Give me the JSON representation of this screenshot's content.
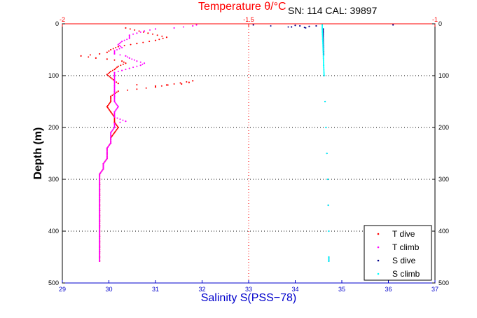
{
  "chart_data": {
    "type": "scatter",
    "title": "Temperature θ/°C",
    "annotation": "SN: 114  CAL: 39897",
    "xlabel": "Salinity S(PSS−78)",
    "ylabel": "Depth (m)",
    "xlim": [
      29,
      37
    ],
    "x_top_lim": [
      -2,
      -1
    ],
    "ylim": [
      0,
      500
    ],
    "y_reversed": true,
    "x_ticks": [
      "29",
      "30",
      "31",
      "32",
      "33",
      "34",
      "35",
      "36",
      "37"
    ],
    "x_top_ticks": [
      "-2",
      "-1.5",
      "-1"
    ],
    "y_ticks": [
      "0",
      "100",
      "200",
      "300",
      "400",
      "500"
    ],
    "grid": "dotted",
    "legend_position": "bottom-right",
    "colors": {
      "t_dive": "#ff0000",
      "t_climb": "#ff00ff",
      "s_dive": "#00008b",
      "s_climb": "#00ffff",
      "temperature_axis": "#ff0000",
      "salinity_axis": "#0000cc"
    },
    "series": [
      {
        "name": "T dive",
        "axis": "temperature",
        "points": [
          [
            -1.83,
            8
          ],
          [
            -1.77,
            18
          ],
          [
            -1.72,
            26
          ],
          [
            -1.75,
            32
          ],
          [
            -1.8,
            38
          ],
          [
            -1.85,
            44
          ],
          [
            -1.87,
            50
          ],
          [
            -1.88,
            55
          ],
          [
            -1.9,
            58
          ],
          [
            -1.95,
            62
          ],
          [
            -1.91,
            66
          ],
          [
            -1.88,
            68
          ],
          [
            -1.84,
            72
          ],
          [
            -1.83,
            76
          ],
          [
            -1.85,
            82
          ],
          [
            -1.86,
            88
          ],
          [
            -1.87,
            92
          ],
          [
            -1.88,
            98
          ],
          [
            -1.87,
            104
          ],
          [
            -1.86,
            110
          ],
          [
            -1.85,
            115
          ],
          [
            -1.75,
            120
          ],
          [
            -1.72,
            118
          ],
          [
            -1.68,
            116
          ],
          [
            -1.66,
            113
          ],
          [
            -1.65,
            110
          ],
          [
            -1.75,
            122
          ],
          [
            -1.85,
            130
          ],
          [
            -1.87,
            140
          ],
          [
            -1.87,
            150
          ],
          [
            -1.88,
            160
          ],
          [
            -1.87,
            170
          ],
          [
            -1.86,
            180
          ],
          [
            -1.86,
            190
          ],
          [
            -1.85,
            200
          ],
          [
            -1.86,
            210
          ],
          [
            -1.87,
            220
          ],
          [
            -1.87,
            230
          ],
          [
            -1.88,
            240
          ],
          [
            -1.88,
            250
          ],
          [
            -1.88,
            260
          ],
          [
            -1.89,
            270
          ],
          [
            -1.89,
            280
          ],
          [
            -1.9,
            290
          ],
          [
            -1.9,
            300
          ],
          [
            -1.9,
            310
          ],
          [
            -1.9,
            320
          ],
          [
            -1.9,
            330
          ],
          [
            -1.9,
            340
          ],
          [
            -1.9,
            350
          ],
          [
            -1.9,
            360
          ],
          [
            -1.9,
            370
          ],
          [
            -1.9,
            380
          ],
          [
            -1.9,
            390
          ],
          [
            -1.9,
            400
          ],
          [
            -1.9,
            410
          ],
          [
            -1.9,
            420
          ],
          [
            -1.9,
            430
          ],
          [
            -1.9,
            440
          ],
          [
            -1.9,
            450
          ],
          [
            -1.9,
            458
          ]
        ]
      },
      {
        "name": "T climb",
        "axis": "temperature",
        "points": [
          [
            -1.64,
            2
          ],
          [
            -1.65,
            4
          ],
          [
            -1.7,
            8
          ],
          [
            -1.75,
            10
          ],
          [
            -1.78,
            14
          ],
          [
            -1.8,
            18
          ],
          [
            -1.82,
            22
          ],
          [
            -1.82,
            28
          ],
          [
            -1.84,
            34
          ],
          [
            -1.85,
            40
          ],
          [
            -1.84,
            46
          ],
          [
            -1.86,
            52
          ],
          [
            -1.86,
            58
          ],
          [
            -1.83,
            62
          ],
          [
            -1.82,
            66
          ],
          [
            -1.8,
            72
          ],
          [
            -1.78,
            76
          ],
          [
            -1.79,
            80
          ],
          [
            -1.82,
            86
          ],
          [
            -1.84,
            90
          ],
          [
            -1.86,
            94
          ],
          [
            -1.86,
            100
          ],
          [
            -1.86,
            110
          ],
          [
            -1.86,
            120
          ],
          [
            -1.86,
            130
          ],
          [
            -1.86,
            140
          ],
          [
            -1.86,
            150
          ],
          [
            -1.85,
            160
          ],
          [
            -1.86,
            170
          ],
          [
            -1.86,
            180
          ],
          [
            -1.83,
            188
          ],
          [
            -1.86,
            192
          ],
          [
            -1.86,
            200
          ],
          [
            -1.87,
            210
          ],
          [
            -1.87,
            220
          ],
          [
            -1.87,
            230
          ],
          [
            -1.88,
            240
          ],
          [
            -1.88,
            250
          ],
          [
            -1.88,
            260
          ],
          [
            -1.89,
            270
          ],
          [
            -1.89,
            280
          ],
          [
            -1.9,
            290
          ],
          [
            -1.9,
            300
          ],
          [
            -1.9,
            310
          ],
          [
            -1.9,
            320
          ],
          [
            -1.9,
            330
          ],
          [
            -1.9,
            340
          ],
          [
            -1.9,
            350
          ],
          [
            -1.9,
            360
          ],
          [
            -1.9,
            370
          ],
          [
            -1.9,
            380
          ],
          [
            -1.9,
            390
          ],
          [
            -1.9,
            400
          ],
          [
            -1.9,
            410
          ],
          [
            -1.9,
            420
          ],
          [
            -1.9,
            430
          ],
          [
            -1.9,
            440
          ],
          [
            -1.9,
            450
          ],
          [
            -1.9,
            458
          ]
        ]
      },
      {
        "name": "S dive",
        "axis": "salinity",
        "points": [
          [
            33.92,
            6
          ],
          [
            34.0,
            3
          ],
          [
            34.1,
            4
          ],
          [
            34.2,
            7
          ],
          [
            34.3,
            5
          ],
          [
            34.45,
            4
          ],
          [
            33.1,
            2
          ],
          [
            34.6,
            10
          ],
          [
            34.6,
            30
          ],
          [
            34.61,
            60
          ],
          [
            34.62,
            100
          ],
          [
            34.64,
            150
          ],
          [
            34.66,
            200
          ],
          [
            34.68,
            250
          ],
          [
            34.7,
            300
          ],
          [
            34.71,
            350
          ],
          [
            34.72,
            400
          ],
          [
            34.72,
            450
          ],
          [
            34.72,
            458
          ],
          [
            36.1,
            2
          ]
        ]
      },
      {
        "name": "S climb",
        "axis": "salinity",
        "points": [
          [
            34.58,
            2
          ],
          [
            34.58,
            10
          ],
          [
            34.59,
            30
          ],
          [
            34.6,
            50
          ],
          [
            34.61,
            80
          ],
          [
            34.62,
            100
          ],
          [
            34.64,
            150
          ],
          [
            34.66,
            200
          ],
          [
            34.68,
            250
          ],
          [
            34.7,
            300
          ],
          [
            34.71,
            350
          ],
          [
            34.72,
            400
          ],
          [
            34.72,
            450
          ],
          [
            34.72,
            458
          ]
        ]
      }
    ]
  }
}
